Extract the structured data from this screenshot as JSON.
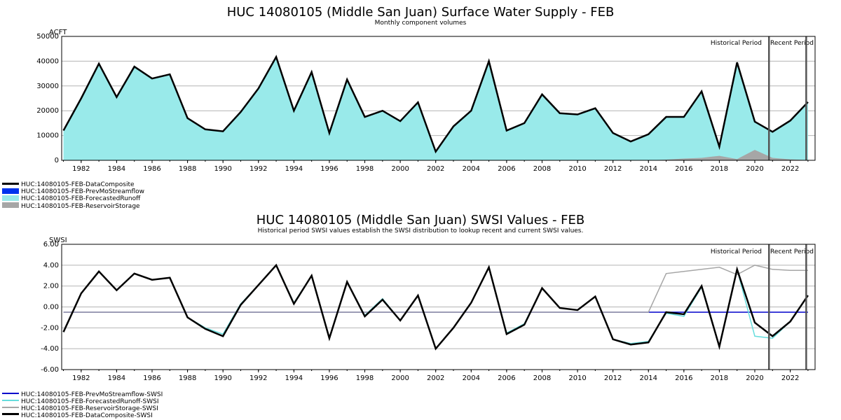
{
  "chart_data": [
    {
      "type": "area",
      "title": "HUC 14080105 (Middle San Juan) Surface Water Supply - FEB",
      "subtitle": "Monthly component volumes",
      "ylabel": "ACFT",
      "ylim": [
        0,
        50000
      ],
      "yticks": [
        0,
        10000,
        20000,
        30000,
        40000,
        50000
      ],
      "xlim": [
        1980.9,
        2023.4
      ],
      "xticks": [
        1982,
        1984,
        1986,
        1988,
        1990,
        1992,
        1994,
        1996,
        1998,
        2000,
        2002,
        2004,
        2006,
        2008,
        2010,
        2012,
        2014,
        2016,
        2018,
        2020,
        2022
      ],
      "grid": true,
      "period_labels": [
        "Historical Period",
        "Recent Period"
      ],
      "period_lines_x": [
        2020.8,
        2022.9
      ],
      "x": [
        1981,
        1982,
        1983,
        1984,
        1985,
        1986,
        1987,
        1988,
        1989,
        1990,
        1991,
        1992,
        1993,
        1994,
        1995,
        1996,
        1997,
        1998,
        1999,
        2000,
        2001,
        2002,
        2003,
        2004,
        2005,
        2006,
        2007,
        2008,
        2009,
        2010,
        2011,
        2012,
        2013,
        2014,
        2015,
        2016,
        2017,
        2018,
        2019,
        2020,
        2021,
        2022,
        2023
      ],
      "series": [
        {
          "name": "HUC:14080105-FEB-DataComposite",
          "color": "#000000",
          "style": "line",
          "values": [
            12000,
            25000,
            39000,
            25500,
            37800,
            33000,
            34700,
            17000,
            12500,
            11700,
            19500,
            29000,
            41700,
            20000,
            35600,
            11000,
            32600,
            17500,
            20000,
            15800,
            23400,
            3500,
            13700,
            20000,
            40000,
            12000,
            15000,
            26600,
            19000,
            18500,
            21000,
            11000,
            7600,
            10500,
            17500,
            17500,
            27800,
            5500,
            39500,
            15600,
            11500,
            16000,
            23500
          ]
        },
        {
          "name": "HUC:14080105-FEB-PrevMoStreamflow",
          "color": "#0033ee",
          "style": "area",
          "values": [
            0,
            0,
            0,
            0,
            0,
            0,
            0,
            0,
            0,
            0,
            0,
            0,
            0,
            0,
            0,
            0,
            0,
            0,
            0,
            0,
            0,
            0,
            0,
            0,
            0,
            0,
            0,
            0,
            0,
            0,
            0,
            0,
            0,
            0,
            0,
            0,
            0,
            0,
            0,
            0,
            0,
            0,
            0
          ]
        },
        {
          "name": "HUC:14080105-FEB-ForecastedRunoff",
          "color": "#99eaea",
          "style": "area",
          "values": [
            12000,
            25000,
            39000,
            25500,
            37800,
            33000,
            34700,
            17000,
            12500,
            11700,
            19500,
            29000,
            41700,
            20000,
            35600,
            11000,
            32600,
            17500,
            20000,
            15800,
            23400,
            3500,
            13700,
            20000,
            40000,
            12000,
            15000,
            26600,
            19000,
            18500,
            21000,
            11000,
            7600,
            10500,
            17500,
            17500,
            27800,
            5500,
            39500,
            15600,
            11500,
            16000,
            23500
          ]
        },
        {
          "name": "HUC:14080105-FEB-ReservoirStorage",
          "color": "#a6a6a6",
          "style": "area",
          "values": [
            0,
            0,
            0,
            0,
            0,
            0,
            0,
            0,
            0,
            0,
            0,
            0,
            0,
            0,
            0,
            0,
            0,
            0,
            0,
            0,
            0,
            0,
            0,
            0,
            0,
            0,
            0,
            0,
            0,
            0,
            0,
            0,
            0,
            0,
            300,
            700,
            1000,
            1800,
            500,
            4200,
            1000,
            400,
            100
          ]
        }
      ]
    },
    {
      "type": "line",
      "title": "HUC 14080105 (Middle San Juan) SWSI Values - FEB",
      "subtitle": "Historical period SWSI values establish the SWSI distribution to lookup recent and current SWSI values.",
      "ylabel": "SWSI",
      "ylim": [
        -6,
        6
      ],
      "yticks": [
        -6,
        -4,
        -2,
        0,
        2,
        4,
        6
      ],
      "ytick_labels": [
        "-6.00",
        "-4.00",
        "-2.00",
        "0.00",
        "2.00",
        "4.00",
        "6.00"
      ],
      "xlim": [
        1980.9,
        2023.4
      ],
      "xticks": [
        1982,
        1984,
        1986,
        1988,
        1990,
        1992,
        1994,
        1996,
        1998,
        2000,
        2002,
        2004,
        2006,
        2008,
        2010,
        2012,
        2014,
        2016,
        2018,
        2020,
        2022
      ],
      "grid": true,
      "period_labels": [
        "Historical Period",
        "Recent Period"
      ],
      "period_lines_x": [
        2020.8,
        2022.9
      ],
      "x": [
        1981,
        1982,
        1983,
        1984,
        1985,
        1986,
        1987,
        1988,
        1989,
        1990,
        1991,
        1992,
        1993,
        1994,
        1995,
        1996,
        1997,
        1998,
        1999,
        2000,
        2001,
        2002,
        2003,
        2004,
        2005,
        2006,
        2007,
        2008,
        2009,
        2010,
        2011,
        2012,
        2013,
        2014,
        2015,
        2016,
        2017,
        2018,
        2019,
        2020,
        2021,
        2022,
        2023
      ],
      "series": [
        {
          "name": "HUC:14080105-FEB-PrevMoStreamflow-SWSI",
          "color": "#0000cc",
          "values": [
            -0.5,
            -0.5,
            -0.5,
            -0.5,
            -0.5,
            -0.5,
            -0.5,
            -0.5,
            -0.5,
            -0.5,
            -0.5,
            -0.5,
            -0.5,
            -0.5,
            -0.5,
            -0.5,
            -0.5,
            -0.5,
            -0.5,
            -0.5,
            -0.5,
            -0.5,
            -0.5,
            -0.5,
            -0.5,
            -0.5,
            -0.5,
            -0.5,
            -0.5,
            -0.5,
            -0.5,
            -0.5,
            -0.5,
            -0.5,
            -0.5,
            -0.5,
            -0.5,
            -0.5,
            -0.5,
            -0.5,
            -0.5,
            -0.5,
            -0.5
          ]
        },
        {
          "name": "HUC:14080105-FEB-ForecastedRunoff-SWSI",
          "color": "#66dddd",
          "values": [
            -2.4,
            1.3,
            3.4,
            1.6,
            3.2,
            2.6,
            2.8,
            -1.0,
            -2.0,
            -2.6,
            0.3,
            2.1,
            4.0,
            0.4,
            3.0,
            -3.0,
            2.4,
            -0.8,
            0.8,
            -1.3,
            1.1,
            -4.0,
            -2.0,
            0.4,
            3.8,
            -2.5,
            -1.6,
            1.8,
            -0.1,
            -0.3,
            1.0,
            -3.1,
            -3.5,
            -3.3,
            -0.6,
            -0.9,
            1.9,
            -3.8,
            3.6,
            -2.8,
            -3.0,
            -1.4,
            1.1
          ]
        },
        {
          "name": "HUC:14080105-FEB-ReservoirStorage-SWSI",
          "color": "#a6a6a6",
          "values": [
            -0.5,
            -0.5,
            -0.5,
            -0.5,
            -0.5,
            -0.5,
            -0.5,
            -0.5,
            -0.5,
            -0.5,
            -0.5,
            -0.5,
            -0.5,
            -0.5,
            -0.5,
            -0.5,
            -0.5,
            -0.5,
            -0.5,
            -0.5,
            -0.5,
            -0.5,
            -0.5,
            -0.5,
            -0.5,
            -0.5,
            -0.5,
            -0.5,
            -0.5,
            -0.5,
            -0.5,
            -0.5,
            -0.5,
            -0.5,
            3.2,
            3.4,
            3.6,
            3.8,
            3.1,
            4.0,
            3.6,
            3.5,
            3.5
          ]
        },
        {
          "name": "HUC:14080105-FEB-DataComposite-SWSI",
          "color": "#000000",
          "values": [
            -2.4,
            1.3,
            3.4,
            1.6,
            3.2,
            2.6,
            2.8,
            -1.0,
            -2.1,
            -2.8,
            0.2,
            2.1,
            4.0,
            0.3,
            3.0,
            -3.0,
            2.4,
            -0.9,
            0.7,
            -1.3,
            1.1,
            -4.0,
            -2.0,
            0.4,
            3.8,
            -2.6,
            -1.7,
            1.8,
            -0.1,
            -0.3,
            1.0,
            -3.1,
            -3.6,
            -3.4,
            -0.5,
            -0.7,
            2.0,
            -3.8,
            3.6,
            -1.5,
            -2.8,
            -1.4,
            1.1
          ]
        }
      ]
    }
  ]
}
